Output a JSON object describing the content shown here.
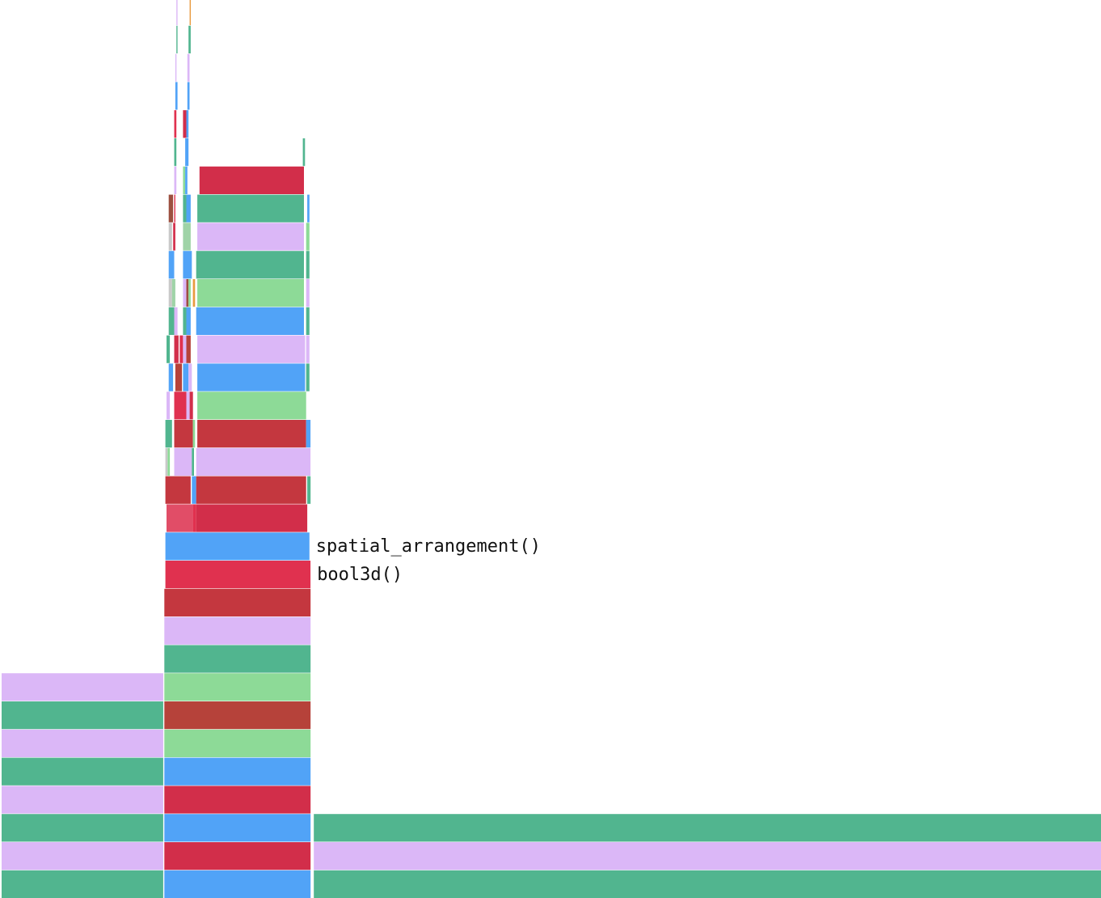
{
  "colors": {
    "green": "#51b58f",
    "lavender": "#dbb7f7",
    "blue": "#51a3f7",
    "crimson": "#d22e4a",
    "rose": "#e0314f",
    "brick": "#c4373f",
    "rust": "#b6423a",
    "light_green": "#8dda97",
    "pink": "#e14d67",
    "brown": "#9c4f3f",
    "orange": "#e89a3f",
    "grey": "#c9c9c9",
    "sage": "#9fd3a7"
  },
  "chart_data": {
    "type": "flamegraph",
    "units": "fraction of total width",
    "levels": 32,
    "frames": [
      {
        "depth": 0,
        "start": 0.0,
        "end": 0.147,
        "color": "green"
      },
      {
        "depth": 1,
        "start": 0.0,
        "end": 0.147,
        "color": "lavender"
      },
      {
        "depth": 2,
        "start": 0.0,
        "end": 0.147,
        "color": "green"
      },
      {
        "depth": 3,
        "start": 0.0,
        "end": 0.147,
        "color": "lavender"
      },
      {
        "depth": 4,
        "start": 0.0,
        "end": 0.147,
        "color": "green"
      },
      {
        "depth": 5,
        "start": 0.0,
        "end": 0.147,
        "color": "lavender"
      },
      {
        "depth": 6,
        "start": 0.0,
        "end": 0.147,
        "color": "green"
      },
      {
        "depth": 7,
        "start": 0.0,
        "end": 0.147,
        "color": "lavender"
      },
      {
        "depth": 0,
        "start": 0.148,
        "end": 0.281,
        "color": "blue"
      },
      {
        "depth": 1,
        "start": 0.148,
        "end": 0.281,
        "color": "crimson"
      },
      {
        "depth": 2,
        "start": 0.148,
        "end": 0.281,
        "color": "blue"
      },
      {
        "depth": 3,
        "start": 0.148,
        "end": 0.281,
        "color": "crimson"
      },
      {
        "depth": 4,
        "start": 0.148,
        "end": 0.281,
        "color": "blue"
      },
      {
        "depth": 5,
        "start": 0.148,
        "end": 0.281,
        "color": "light_green"
      },
      {
        "depth": 6,
        "start": 0.148,
        "end": 0.281,
        "color": "rust"
      },
      {
        "depth": 7,
        "start": 0.148,
        "end": 0.281,
        "color": "light_green"
      },
      {
        "depth": 8,
        "start": 0.148,
        "end": 0.281,
        "color": "green"
      },
      {
        "depth": 9,
        "start": 0.148,
        "end": 0.281,
        "color": "lavender"
      },
      {
        "depth": 10,
        "start": 0.148,
        "end": 0.281,
        "color": "brick"
      },
      {
        "depth": 11,
        "start": 0.149,
        "end": 0.281,
        "color": "rose",
        "label": "bool3d()"
      },
      {
        "depth": 12,
        "start": 0.149,
        "end": 0.28,
        "color": "blue",
        "label": "spatial_arrangement()"
      },
      {
        "depth": 13,
        "start": 0.15,
        "end": 0.174,
        "color": "pink"
      },
      {
        "depth": 13,
        "start": 0.174,
        "end": 0.177,
        "color": "rose"
      },
      {
        "depth": 13,
        "start": 0.177,
        "end": 0.278,
        "color": "crimson"
      },
      {
        "depth": 14,
        "start": 0.149,
        "end": 0.172,
        "color": "brick"
      },
      {
        "depth": 14,
        "start": 0.173,
        "end": 0.177,
        "color": "blue"
      },
      {
        "depth": 14,
        "start": 0.177,
        "end": 0.277,
        "color": "brick"
      },
      {
        "depth": 14,
        "start": 0.278,
        "end": 0.281,
        "color": "green"
      },
      {
        "depth": 15,
        "start": 0.149,
        "end": 0.151,
        "color": "grey"
      },
      {
        "depth": 15,
        "start": 0.151,
        "end": 0.153,
        "color": "light_green"
      },
      {
        "depth": 15,
        "start": 0.157,
        "end": 0.173,
        "color": "lavender"
      },
      {
        "depth": 15,
        "start": 0.173,
        "end": 0.175,
        "color": "green"
      },
      {
        "depth": 15,
        "start": 0.177,
        "end": 0.281,
        "color": "lavender"
      },
      {
        "depth": 16,
        "start": 0.149,
        "end": 0.155,
        "color": "green"
      },
      {
        "depth": 16,
        "start": 0.157,
        "end": 0.174,
        "color": "brick"
      },
      {
        "depth": 16,
        "start": 0.174,
        "end": 0.176,
        "color": "light_green"
      },
      {
        "depth": 16,
        "start": 0.178,
        "end": 0.277,
        "color": "brick"
      },
      {
        "depth": 16,
        "start": 0.277,
        "end": 0.281,
        "color": "blue"
      },
      {
        "depth": 17,
        "start": 0.15,
        "end": 0.153,
        "color": "lavender"
      },
      {
        "depth": 17,
        "start": 0.157,
        "end": 0.168,
        "color": "rose"
      },
      {
        "depth": 17,
        "start": 0.168,
        "end": 0.171,
        "color": "lavender"
      },
      {
        "depth": 17,
        "start": 0.171,
        "end": 0.174,
        "color": "crimson"
      },
      {
        "depth": 17,
        "start": 0.178,
        "end": 0.277,
        "color": "light_green"
      },
      {
        "depth": 18,
        "start": 0.152,
        "end": 0.156,
        "color": "blue"
      },
      {
        "depth": 18,
        "start": 0.158,
        "end": 0.164,
        "color": "rust"
      },
      {
        "depth": 18,
        "start": 0.165,
        "end": 0.17,
        "color": "blue"
      },
      {
        "depth": 18,
        "start": 0.17,
        "end": 0.173,
        "color": "lavender"
      },
      {
        "depth": 18,
        "start": 0.178,
        "end": 0.276,
        "color": "blue"
      },
      {
        "depth": 18,
        "start": 0.277,
        "end": 0.28,
        "color": "green"
      },
      {
        "depth": 19,
        "start": 0.15,
        "end": 0.153,
        "color": "green"
      },
      {
        "depth": 19,
        "start": 0.157,
        "end": 0.161,
        "color": "crimson"
      },
      {
        "depth": 19,
        "start": 0.162,
        "end": 0.165,
        "color": "rose"
      },
      {
        "depth": 19,
        "start": 0.165,
        "end": 0.168,
        "color": "lavender"
      },
      {
        "depth": 19,
        "start": 0.168,
        "end": 0.172,
        "color": "rust"
      },
      {
        "depth": 19,
        "start": 0.178,
        "end": 0.276,
        "color": "lavender"
      },
      {
        "depth": 19,
        "start": 0.277,
        "end": 0.28,
        "color": "lavender"
      },
      {
        "depth": 20,
        "start": 0.152,
        "end": 0.157,
        "color": "green"
      },
      {
        "depth": 20,
        "start": 0.157,
        "end": 0.16,
        "color": "lavender"
      },
      {
        "depth": 20,
        "start": 0.165,
        "end": 0.168,
        "color": "green"
      },
      {
        "depth": 20,
        "start": 0.168,
        "end": 0.172,
        "color": "blue"
      },
      {
        "depth": 20,
        "start": 0.177,
        "end": 0.275,
        "color": "blue"
      },
      {
        "depth": 20,
        "start": 0.277,
        "end": 0.28,
        "color": "green"
      },
      {
        "depth": 21,
        "start": 0.152,
        "end": 0.155,
        "color": "grey"
      },
      {
        "depth": 21,
        "start": 0.155,
        "end": 0.158,
        "color": "sage"
      },
      {
        "depth": 21,
        "start": 0.165,
        "end": 0.168,
        "color": "lavender"
      },
      {
        "depth": 21,
        "start": 0.168,
        "end": 0.17,
        "color": "brown"
      },
      {
        "depth": 21,
        "start": 0.17,
        "end": 0.172,
        "color": "light_green"
      },
      {
        "depth": 21,
        "start": 0.174,
        "end": 0.176,
        "color": "orange"
      },
      {
        "depth": 21,
        "start": 0.178,
        "end": 0.275,
        "color": "light_green"
      },
      {
        "depth": 21,
        "start": 0.277,
        "end": 0.28,
        "color": "lavender"
      },
      {
        "depth": 22,
        "start": 0.152,
        "end": 0.157,
        "color": "blue"
      },
      {
        "depth": 22,
        "start": 0.165,
        "end": 0.173,
        "color": "blue"
      },
      {
        "depth": 22,
        "start": 0.177,
        "end": 0.275,
        "color": "green"
      },
      {
        "depth": 22,
        "start": 0.277,
        "end": 0.28,
        "color": "green"
      },
      {
        "depth": 23,
        "start": 0.152,
        "end": 0.155,
        "color": "grey"
      },
      {
        "depth": 23,
        "start": 0.156,
        "end": 0.158,
        "color": "crimson"
      },
      {
        "depth": 23,
        "start": 0.165,
        "end": 0.172,
        "color": "sage"
      },
      {
        "depth": 23,
        "start": 0.178,
        "end": 0.275,
        "color": "lavender"
      },
      {
        "depth": 23,
        "start": 0.277,
        "end": 0.28,
        "color": "light_green"
      },
      {
        "depth": 24,
        "start": 0.152,
        "end": 0.156,
        "color": "brown"
      },
      {
        "depth": 24,
        "start": 0.157,
        "end": 0.158,
        "color": "rose"
      },
      {
        "depth": 24,
        "start": 0.165,
        "end": 0.168,
        "color": "green"
      },
      {
        "depth": 24,
        "start": 0.168,
        "end": 0.172,
        "color": "blue"
      },
      {
        "depth": 24,
        "start": 0.178,
        "end": 0.275,
        "color": "green"
      },
      {
        "depth": 24,
        "start": 0.278,
        "end": 0.28,
        "color": "blue"
      },
      {
        "depth": 25,
        "start": 0.157,
        "end": 0.159,
        "color": "lavender"
      },
      {
        "depth": 25,
        "start": 0.165,
        "end": 0.167,
        "color": "light_green"
      },
      {
        "depth": 25,
        "start": 0.167,
        "end": 0.169,
        "color": "blue"
      },
      {
        "depth": 25,
        "start": 0.18,
        "end": 0.275,
        "color": "crimson"
      },
      {
        "depth": 26,
        "start": 0.157,
        "end": 0.159,
        "color": "green"
      },
      {
        "depth": 26,
        "start": 0.167,
        "end": 0.17,
        "color": "blue"
      },
      {
        "depth": 26,
        "start": 0.274,
        "end": 0.276,
        "color": "green"
      },
      {
        "depth": 27,
        "start": 0.157,
        "end": 0.159,
        "color": "rose"
      },
      {
        "depth": 27,
        "start": 0.165,
        "end": 0.168,
        "color": "crimson"
      },
      {
        "depth": 27,
        "start": 0.168,
        "end": 0.17,
        "color": "blue"
      },
      {
        "depth": 28,
        "start": 0.158,
        "end": 0.16,
        "color": "blue"
      },
      {
        "depth": 28,
        "start": 0.169,
        "end": 0.171,
        "color": "blue"
      },
      {
        "depth": 29,
        "start": 0.158,
        "end": 0.159,
        "color": "lavender"
      },
      {
        "depth": 29,
        "start": 0.169,
        "end": 0.171,
        "color": "lavender"
      },
      {
        "depth": 30,
        "start": 0.159,
        "end": 0.16,
        "color": "green"
      },
      {
        "depth": 30,
        "start": 0.17,
        "end": 0.172,
        "color": "green"
      },
      {
        "depth": 31,
        "start": 0.159,
        "end": 0.16,
        "color": "lavender"
      },
      {
        "depth": 31,
        "start": 0.171,
        "end": 0.172,
        "color": "orange"
      },
      {
        "depth": 0,
        "start": 0.284,
        "end": 1.0,
        "color": "green"
      },
      {
        "depth": 1,
        "start": 0.284,
        "end": 1.0,
        "color": "lavender"
      },
      {
        "depth": 2,
        "start": 0.284,
        "end": 1.0,
        "color": "green"
      }
    ]
  }
}
